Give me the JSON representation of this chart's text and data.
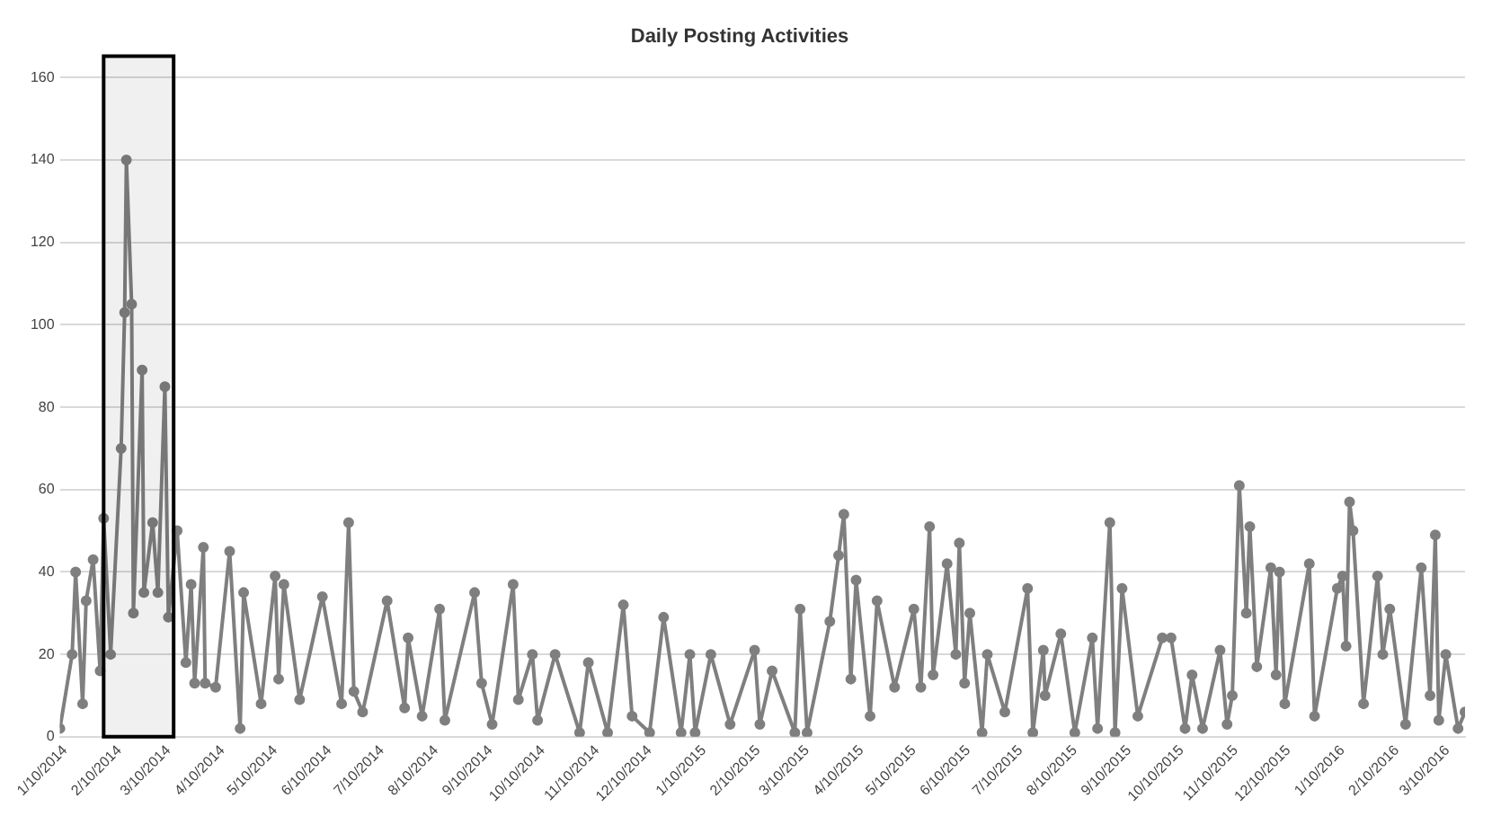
{
  "chart_data": {
    "type": "line",
    "title": "Daily Posting Activities",
    "color": "#7f7f7f",
    "marker": "circle",
    "grid": "y",
    "legend": false,
    "x": [
      "2014-01-07",
      "2014-01-14",
      "2014-01-16",
      "2014-01-20",
      "2014-01-22",
      "2014-01-26",
      "2014-01-30",
      "2014-02-01",
      "2014-02-05",
      "2014-02-11",
      "2014-02-13",
      "2014-02-14",
      "2014-02-17",
      "2014-02-18",
      "2014-02-23",
      "2014-02-24",
      "2014-03-01",
      "2014-03-04",
      "2014-03-08",
      "2014-03-10",
      "2014-03-15",
      "2014-03-20",
      "2014-03-23",
      "2014-03-25",
      "2014-03-30",
      "2014-03-31",
      "2014-04-06",
      "2014-04-14",
      "2014-04-20",
      "2014-04-22",
      "2014-05-02",
      "2014-05-10",
      "2014-05-12",
      "2014-05-15",
      "2014-05-24",
      "2014-06-06",
      "2014-06-17",
      "2014-06-21",
      "2014-06-24",
      "2014-06-29",
      "2014-07-13",
      "2014-07-23",
      "2014-07-25",
      "2014-08-02",
      "2014-08-12",
      "2014-08-15",
      "2014-09-01",
      "2014-09-05",
      "2014-09-11",
      "2014-09-23",
      "2014-09-26",
      "2014-10-04",
      "2014-10-07",
      "2014-10-17",
      "2014-10-31",
      "2014-11-05",
      "2014-11-16",
      "2014-11-25",
      "2014-11-30",
      "2014-12-10",
      "2014-12-18",
      "2014-12-28",
      "2015-01-02",
      "2015-01-05",
      "2015-01-14",
      "2015-01-25",
      "2015-02-08",
      "2015-02-11",
      "2015-02-18",
      "2015-03-03",
      "2015-03-06",
      "2015-03-10",
      "2015-03-23",
      "2015-03-28",
      "2015-03-31",
      "2015-04-04",
      "2015-04-07",
      "2015-04-15",
      "2015-04-19",
      "2015-04-29",
      "2015-05-10",
      "2015-05-14",
      "2015-05-19",
      "2015-05-21",
      "2015-05-29",
      "2015-06-03",
      "2015-06-05",
      "2015-06-08",
      "2015-06-11",
      "2015-06-18",
      "2015-06-21",
      "2015-07-01",
      "2015-07-14",
      "2015-07-17",
      "2015-07-23",
      "2015-07-24",
      "2015-08-02",
      "2015-08-10",
      "2015-08-20",
      "2015-08-23",
      "2015-08-30",
      "2015-09-02",
      "2015-09-06",
      "2015-09-15",
      "2015-09-29",
      "2015-10-04",
      "2015-10-12",
      "2015-10-16",
      "2015-10-22",
      "2015-11-01",
      "2015-11-05",
      "2015-11-08",
      "2015-11-12",
      "2015-11-16",
      "2015-11-18",
      "2015-11-22",
      "2015-11-30",
      "2015-12-03",
      "2015-12-05",
      "2015-12-08",
      "2015-12-22",
      "2015-12-25",
      "2016-01-07",
      "2016-01-10",
      "2016-01-12",
      "2016-01-14",
      "2016-01-16",
      "2016-01-22",
      "2016-01-30",
      "2016-02-02",
      "2016-02-06",
      "2016-02-15",
      "2016-02-24",
      "2016-02-29",
      "2016-03-03",
      "2016-03-05",
      "2016-03-09",
      "2016-03-16",
      "2016-03-20"
    ],
    "values": [
      2,
      20,
      40,
      8,
      33,
      43,
      16,
      53,
      20,
      70,
      103,
      140,
      105,
      30,
      89,
      35,
      52,
      35,
      85,
      29,
      50,
      18,
      37,
      13,
      46,
      13,
      12,
      45,
      2,
      35,
      8,
      39,
      14,
      37,
      9,
      34,
      8,
      52,
      11,
      6,
      33,
      7,
      24,
      5,
      31,
      4,
      35,
      13,
      3,
      37,
      9,
      20,
      4,
      20,
      1,
      18,
      1,
      32,
      5,
      1,
      29,
      1,
      20,
      1,
      20,
      3,
      21,
      3,
      16,
      1,
      31,
      1,
      28,
      44,
      54,
      14,
      38,
      5,
      33,
      12,
      31,
      12,
      51,
      15,
      42,
      20,
      47,
      13,
      30,
      1,
      20,
      6,
      36,
      1,
      21,
      10,
      25,
      1,
      24,
      2,
      52,
      1,
      36,
      5,
      24,
      24,
      2,
      15,
      2,
      21,
      3,
      10,
      61,
      30,
      51,
      17,
      41,
      15,
      40,
      8,
      42,
      5,
      36,
      39,
      22,
      57,
      50,
      8,
      39,
      20,
      31,
      3,
      41,
      10,
      49,
      4,
      20,
      2,
      6
    ],
    "xlim": [
      "2014-01-07",
      "2016-03-20"
    ],
    "xticks": [
      {
        "value": "2014-01-10",
        "label": "1/10/2014"
      },
      {
        "value": "2014-02-10",
        "label": "2/10/2014"
      },
      {
        "value": "2014-03-10",
        "label": "3/10/2014"
      },
      {
        "value": "2014-04-10",
        "label": "4/10/2014"
      },
      {
        "value": "2014-05-10",
        "label": "5/10/2014"
      },
      {
        "value": "2014-06-10",
        "label": "6/10/2014"
      },
      {
        "value": "2014-07-10",
        "label": "7/10/2014"
      },
      {
        "value": "2014-08-10",
        "label": "8/10/2014"
      },
      {
        "value": "2014-09-10",
        "label": "9/10/2014"
      },
      {
        "value": "2014-10-10",
        "label": "10/10/2014"
      },
      {
        "value": "2014-11-10",
        "label": "11/10/2014"
      },
      {
        "value": "2014-12-10",
        "label": "12/10/2014"
      },
      {
        "value": "2015-01-10",
        "label": "1/10/2015"
      },
      {
        "value": "2015-02-10",
        "label": "2/10/2015"
      },
      {
        "value": "2015-03-10",
        "label": "3/10/2015"
      },
      {
        "value": "2015-04-10",
        "label": "4/10/2015"
      },
      {
        "value": "2015-05-10",
        "label": "5/10/2015"
      },
      {
        "value": "2015-06-10",
        "label": "6/10/2015"
      },
      {
        "value": "2015-07-10",
        "label": "7/10/2015"
      },
      {
        "value": "2015-08-10",
        "label": "8/10/2015"
      },
      {
        "value": "2015-09-10",
        "label": "9/10/2015"
      },
      {
        "value": "2015-10-10",
        "label": "10/10/2015"
      },
      {
        "value": "2015-11-10",
        "label": "11/10/2015"
      },
      {
        "value": "2015-12-10",
        "label": "12/10/2015"
      },
      {
        "value": "2016-01-10",
        "label": "1/10/2016"
      },
      {
        "value": "2016-02-10",
        "label": "2/10/2016"
      },
      {
        "value": "2016-03-10",
        "label": "3/10/2016"
      }
    ],
    "ylim": [
      0,
      160
    ],
    "yticks": [
      0,
      20,
      40,
      60,
      80,
      100,
      120,
      140,
      160
    ],
    "bands": [
      {
        "axis": "x",
        "from": "2014-02-01",
        "to": "2014-03-13",
        "color": "#000000"
      }
    ]
  }
}
